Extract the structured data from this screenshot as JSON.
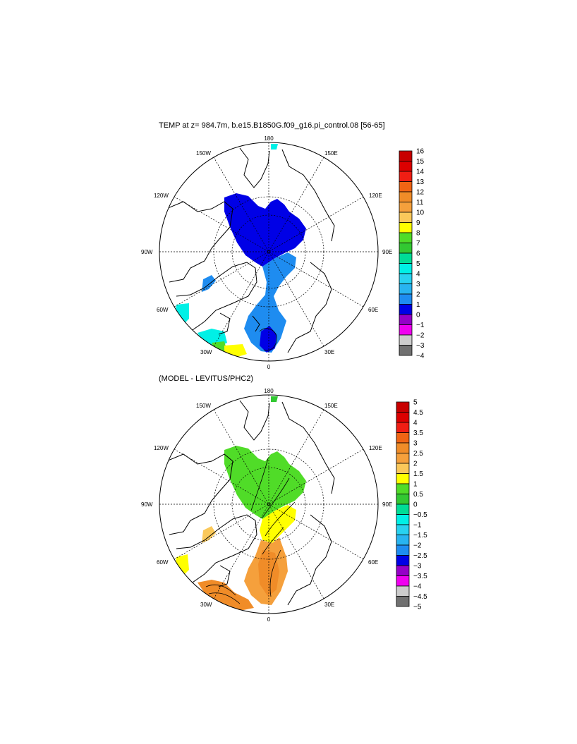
{
  "panels": [
    {
      "title": "TEMP at z= 984.7m, b.e15.B1850G.f09_g16.pi_control.08 [56-65]",
      "lon_labels": {
        "top": "180",
        "bottom": "0",
        "left": "90W",
        "right": "90E",
        "ul": "150W",
        "ur": "150E",
        "ul2": "120W",
        "ur2": "120E",
        "ll": "60W",
        "lr": "60E",
        "ll2": "30W",
        "lr2": "30E"
      },
      "colorbar": {
        "labels": [
          "16",
          "15",
          "14",
          "13",
          "12",
          "11",
          "10",
          "9",
          "8",
          "7",
          "6",
          "5",
          "4",
          "3",
          "2",
          "1",
          "0",
          "−1",
          "−2",
          "−3",
          "−4"
        ],
        "colors": [
          "#c80000",
          "#dc0000",
          "#f01e14",
          "#f06414",
          "#f08c28",
          "#f5a03c",
          "#fac85a",
          "#ffff00",
          "#50dc28",
          "#32c832",
          "#00dc96",
          "#00f0e6",
          "#28d2f0",
          "#28b4f0",
          "#1e8cf0",
          "#0000e6",
          "#9600c8",
          "#f000f0",
          "#cccccc",
          "#707070"
        ]
      }
    },
    {
      "title": "(MODEL - LEVITUS/PHC2)",
      "lon_labels": {
        "top": "180",
        "bottom": "0",
        "left": "90W",
        "right": "90E",
        "ul": "150W",
        "ur": "150E",
        "ul2": "120W",
        "ur2": "120E",
        "ll": "60W",
        "lr": "60E",
        "ll2": "30W",
        "lr2": "30E"
      },
      "colorbar": {
        "labels": [
          "5",
          "4.5",
          "4",
          "3.5",
          "3",
          "2.5",
          "2",
          "1.5",
          "1",
          "0.5",
          "0",
          "−0.5",
          "−1",
          "−1.5",
          "−2",
          "−2.5",
          "−3",
          "−3.5",
          "−4",
          "−4.5",
          "−5"
        ],
        "colors": [
          "#c80000",
          "#dc0000",
          "#f01e14",
          "#f06414",
          "#f08c28",
          "#f5a03c",
          "#fac85a",
          "#ffff00",
          "#50dc28",
          "#32c832",
          "#00dc96",
          "#00f0e6",
          "#28d2f0",
          "#28b4f0",
          "#1e8cf0",
          "#0000e6",
          "#9600c8",
          "#f000f0",
          "#cccccc",
          "#707070"
        ]
      }
    }
  ]
}
